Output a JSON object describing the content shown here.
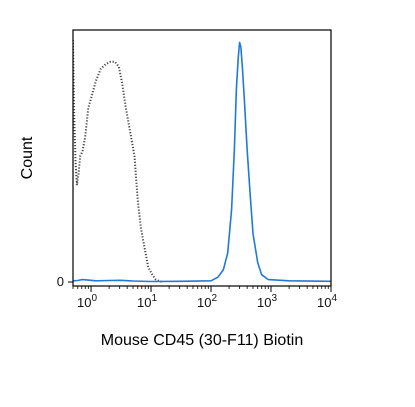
{
  "chart_data": {
    "type": "line",
    "title": "",
    "xlabel": "Mouse CD45 (30-F11) Biotin",
    "ylabel": "Count",
    "x_scale": "log",
    "xlim": [
      0.5,
      10000
    ],
    "ylim": [
      0,
      100
    ],
    "grid": false,
    "legend": "none",
    "x_ticks": [
      {
        "base": "10",
        "exp": "0",
        "value": 1
      },
      {
        "base": "10",
        "exp": "1",
        "value": 10
      },
      {
        "base": "10",
        "exp": "2",
        "value": 100
      },
      {
        "base": "10",
        "exp": "3",
        "value": 1000
      },
      {
        "base": "10",
        "exp": "4",
        "value": 10000
      }
    ],
    "y_ticks": [
      {
        "label": "0",
        "value": 0
      }
    ],
    "series": [
      {
        "style": "dotted",
        "color": "#444444",
        "points": [
          [
            0.5,
            100
          ],
          [
            0.52,
            72
          ],
          [
            0.55,
            50
          ],
          [
            0.58,
            40
          ],
          [
            0.62,
            45
          ],
          [
            0.66,
            52
          ],
          [
            0.72,
            54
          ],
          [
            0.8,
            60
          ],
          [
            0.9,
            72
          ],
          [
            1.0,
            76
          ],
          [
            1.2,
            83
          ],
          [
            1.45,
            88
          ],
          [
            1.75,
            90
          ],
          [
            2.1,
            91
          ],
          [
            2.5,
            91
          ],
          [
            2.9,
            89
          ],
          [
            3.3,
            82
          ],
          [
            3.8,
            72
          ],
          [
            4.5,
            62
          ],
          [
            5.3,
            52
          ],
          [
            6.0,
            34
          ],
          [
            6.8,
            22
          ],
          [
            7.8,
            14
          ],
          [
            9.0,
            6
          ],
          [
            10.5,
            3
          ],
          [
            12,
            1
          ],
          [
            14,
            0.3
          ],
          [
            16,
            0
          ]
        ]
      },
      {
        "style": "solid",
        "color": "#1f7ad6",
        "points": [
          [
            0.5,
            0.5
          ],
          [
            0.6,
            0.6
          ],
          [
            0.7,
            1.0
          ],
          [
            0.9,
            0.8
          ],
          [
            1.2,
            0.5
          ],
          [
            2,
            0.6
          ],
          [
            3,
            0.7
          ],
          [
            5,
            0.4
          ],
          [
            10,
            0.2
          ],
          [
            30,
            0.3
          ],
          [
            100,
            0.5
          ],
          [
            130,
            2
          ],
          [
            160,
            5
          ],
          [
            190,
            12
          ],
          [
            220,
            30
          ],
          [
            245,
            55
          ],
          [
            265,
            80
          ],
          [
            285,
            93
          ],
          [
            300,
            99
          ],
          [
            315,
            97
          ],
          [
            335,
            88
          ],
          [
            360,
            75
          ],
          [
            400,
            55
          ],
          [
            450,
            36
          ],
          [
            500,
            20
          ],
          [
            600,
            8
          ],
          [
            700,
            3
          ],
          [
            900,
            1
          ],
          [
            2000,
            0.5
          ],
          [
            10000,
            0.3
          ]
        ]
      }
    ]
  }
}
